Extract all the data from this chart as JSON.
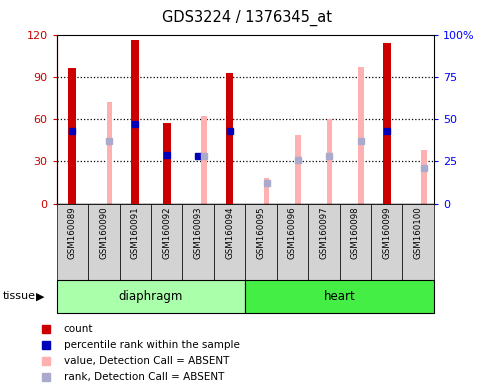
{
  "title": "GDS3224 / 1376345_at",
  "samples": [
    "GSM160089",
    "GSM160090",
    "GSM160091",
    "GSM160092",
    "GSM160093",
    "GSM160094",
    "GSM160095",
    "GSM160096",
    "GSM160097",
    "GSM160098",
    "GSM160099",
    "GSM160100"
  ],
  "red_bars": [
    96,
    0,
    116,
    57,
    0,
    93,
    0,
    0,
    0,
    0,
    114,
    0
  ],
  "pink_bars": [
    0,
    72,
    0,
    0,
    62,
    0,
    18,
    49,
    60,
    97,
    0,
    38
  ],
  "blue_squares": [
    43,
    0,
    47,
    29,
    28,
    43,
    0,
    0,
    0,
    0,
    43,
    0
  ],
  "light_blue_squares": [
    0,
    37,
    0,
    0,
    28,
    0,
    12,
    26,
    28,
    37,
    0,
    21
  ],
  "groups": [
    {
      "label": "diaphragm",
      "start": 0,
      "end": 6
    },
    {
      "label": "heart",
      "start": 6,
      "end": 12
    }
  ],
  "ylim_left": [
    0,
    120
  ],
  "ylim_right": [
    0,
    100
  ],
  "yticks_left": [
    0,
    30,
    60,
    90,
    120
  ],
  "yticks_right": [
    0,
    25,
    50,
    75,
    100
  ],
  "yticklabels_right": [
    "0",
    "25",
    "50",
    "75",
    "100%"
  ],
  "red_color": "#CC0000",
  "pink_color": "#FFB0B0",
  "blue_color": "#0000BB",
  "light_blue_color": "#AAAACC",
  "diaphragm_color": "#AAFFAA",
  "heart_color": "#44EE44",
  "bg_color": "#D3D3D3",
  "plot_bg": "#FFFFFF"
}
